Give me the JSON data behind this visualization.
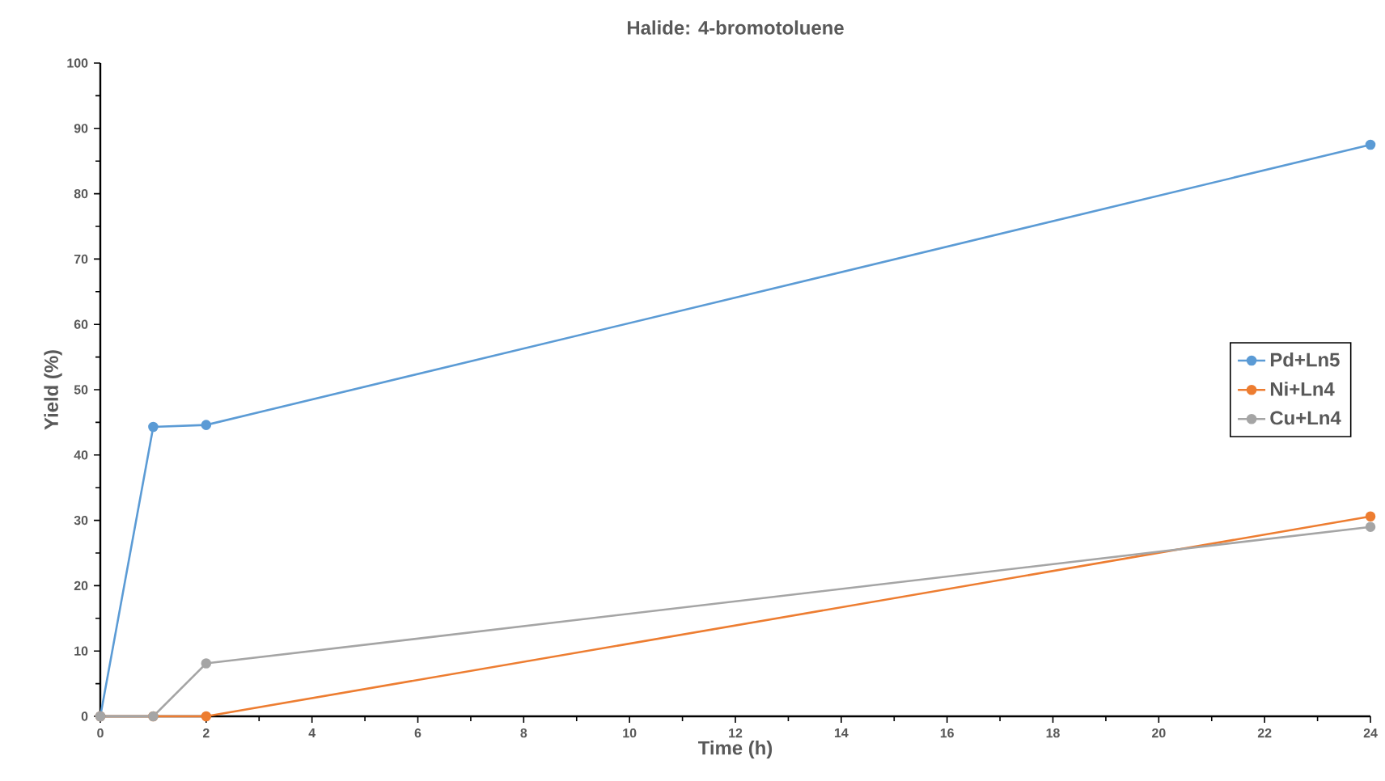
{
  "chart_data": {
    "type": "line",
    "title": "Halide: 4-bromotoluene",
    "xlabel": "Time (h)",
    "ylabel": "Yield (%)",
    "x": [
      0,
      1,
      2,
      24
    ],
    "series": [
      {
        "name": "Pd+Ln5",
        "color": "#5b9bd5",
        "values": [
          0,
          44.3,
          44.6,
          87.5
        ]
      },
      {
        "name": "Ni+Ln4",
        "color": "#ed7d31",
        "values": [
          0,
          0,
          0,
          30.6
        ]
      },
      {
        "name": "Cu+Ln4",
        "color": "#a5a5a5",
        "values": [
          0,
          0,
          8.1,
          29.0
        ]
      }
    ],
    "xlim": [
      0,
      24
    ],
    "xticks": [
      0,
      2,
      4,
      6,
      8,
      10,
      12,
      14,
      16,
      18,
      20,
      22,
      24
    ],
    "ylim": [
      0,
      100
    ],
    "yticks": [
      0,
      10,
      20,
      30,
      40,
      50,
      60,
      70,
      80,
      90,
      100
    ],
    "grid": false,
    "legend": "right",
    "marker": "circle",
    "line_style": "solid"
  }
}
